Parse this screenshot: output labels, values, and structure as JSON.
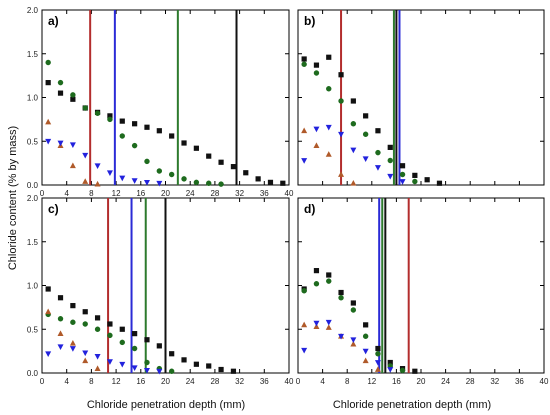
{
  "figure": {
    "ylabel": "Chloride content (% by mass)",
    "xlabel_left": "Chloride penetration depth (mm)",
    "xlabel_right": "Chloride penetration depth (mm)"
  },
  "chart_data": [
    {
      "panel": "a)",
      "type": "scatter",
      "xlim": [
        0,
        40
      ],
      "ylim": [
        0,
        2.0
      ],
      "x_ticks": [
        "0",
        "4",
        "8",
        "12",
        "16",
        "20",
        "24",
        "28",
        "32",
        "36",
        "40"
      ],
      "y_ticks": [
        "0.0",
        "0.5",
        "1.0",
        "1.5",
        "2.0"
      ],
      "series": [
        {
          "marker": "square",
          "color": "#111111",
          "points": [
            [
              1,
              1.17
            ],
            [
              3,
              1.05
            ],
            [
              5,
              0.98
            ],
            [
              7,
              0.88
            ],
            [
              9,
              0.83
            ],
            [
              11,
              0.79
            ],
            [
              13,
              0.73
            ],
            [
              15,
              0.7
            ],
            [
              17,
              0.66
            ],
            [
              19,
              0.62
            ],
            [
              21,
              0.56
            ],
            [
              23,
              0.48
            ],
            [
              25,
              0.42
            ],
            [
              27,
              0.33
            ],
            [
              29,
              0.26
            ],
            [
              31,
              0.21
            ],
            [
              33,
              0.14
            ],
            [
              35,
              0.07
            ],
            [
              37,
              0.03
            ],
            [
              39,
              0.02
            ]
          ]
        },
        {
          "marker": "circle",
          "color": "#1e6b1e",
          "points": [
            [
              1,
              1.4
            ],
            [
              3,
              1.17
            ],
            [
              5,
              1.03
            ],
            [
              7,
              0.88
            ],
            [
              9,
              0.82
            ],
            [
              11,
              0.75
            ],
            [
              13,
              0.56
            ],
            [
              15,
              0.45
            ],
            [
              17,
              0.27
            ],
            [
              19,
              0.16
            ],
            [
              21,
              0.12
            ],
            [
              23,
              0.07
            ],
            [
              25,
              0.03
            ],
            [
              27,
              0.02
            ],
            [
              29,
              0.01
            ]
          ]
        },
        {
          "marker": "triangle-up",
          "color": "#b05a2a",
          "points": [
            [
              1,
              0.72
            ],
            [
              3,
              0.45
            ],
            [
              5,
              0.22
            ],
            [
              7,
              0.04
            ],
            [
              9,
              0.01
            ]
          ]
        },
        {
          "marker": "triangle-down",
          "color": "#2222dd",
          "points": [
            [
              1,
              0.5
            ],
            [
              3,
              0.48
            ],
            [
              5,
              0.46
            ],
            [
              7,
              0.34
            ],
            [
              9,
              0.22
            ],
            [
              11,
              0.14
            ],
            [
              13,
              0.08
            ],
            [
              15,
              0.05
            ],
            [
              17,
              0.03
            ],
            [
              19,
              0.02
            ]
          ]
        }
      ],
      "vlines": [
        {
          "x": 7.8,
          "color": "#b32d2d"
        },
        {
          "x": 11.8,
          "color": "#2b2bd6"
        },
        {
          "x": 22.0,
          "color": "#2d7a2d"
        },
        {
          "x": 31.5,
          "color": "#111111"
        }
      ]
    },
    {
      "panel": "b)",
      "type": "scatter",
      "xlim": [
        0,
        40
      ],
      "ylim": [
        0,
        2.0
      ],
      "x_ticks": [],
      "y_ticks": [],
      "series": [
        {
          "marker": "square",
          "color": "#111111",
          "points": [
            [
              1,
              1.44
            ],
            [
              3,
              1.37
            ],
            [
              5,
              1.46
            ],
            [
              7,
              1.26
            ],
            [
              9,
              0.96
            ],
            [
              11,
              0.79
            ],
            [
              13,
              0.62
            ],
            [
              15,
              0.43
            ],
            [
              17,
              0.22
            ],
            [
              19,
              0.11
            ],
            [
              21,
              0.06
            ],
            [
              23,
              0.02
            ]
          ]
        },
        {
          "marker": "circle",
          "color": "#1e6b1e",
          "points": [
            [
              1,
              1.38
            ],
            [
              3,
              1.28
            ],
            [
              5,
              1.1
            ],
            [
              7,
              0.96
            ],
            [
              9,
              0.7
            ],
            [
              11,
              0.58
            ],
            [
              13,
              0.37
            ],
            [
              15,
              0.28
            ],
            [
              17,
              0.12
            ],
            [
              19,
              0.04
            ]
          ]
        },
        {
          "marker": "triangle-up",
          "color": "#b05a2a",
          "points": [
            [
              1,
              0.62
            ],
            [
              3,
              0.45
            ],
            [
              5,
              0.35
            ],
            [
              7,
              0.12
            ],
            [
              9,
              0.02
            ]
          ]
        },
        {
          "marker": "triangle-down",
          "color": "#2222dd",
          "points": [
            [
              1,
              0.28
            ],
            [
              3,
              0.64
            ],
            [
              5,
              0.66
            ],
            [
              7,
              0.58
            ],
            [
              9,
              0.4
            ],
            [
              11,
              0.3
            ],
            [
              13,
              0.2
            ],
            [
              15,
              0.1
            ],
            [
              17,
              0.04
            ]
          ]
        }
      ],
      "vlines": [
        {
          "x": 7.0,
          "color": "#b32d2d"
        },
        {
          "x": 15.6,
          "color": "#2d7a2d"
        },
        {
          "x": 16.0,
          "color": "#111111"
        },
        {
          "x": 16.5,
          "color": "#2b2bd6"
        }
      ]
    },
    {
      "panel": "c)",
      "type": "scatter",
      "xlim": [
        0,
        40
      ],
      "ylim": [
        0,
        2.0
      ],
      "x_ticks": [
        "0",
        "4",
        "8",
        "12",
        "16",
        "20",
        "24",
        "28",
        "32",
        "36",
        "40"
      ],
      "y_ticks": [
        "0.0",
        "0.5",
        "1.0",
        "1.5",
        "2.0"
      ],
      "series": [
        {
          "marker": "square",
          "color": "#111111",
          "points": [
            [
              1,
              0.96
            ],
            [
              3,
              0.86
            ],
            [
              5,
              0.77
            ],
            [
              7,
              0.7
            ],
            [
              9,
              0.63
            ],
            [
              11,
              0.56
            ],
            [
              13,
              0.5
            ],
            [
              15,
              0.45
            ],
            [
              17,
              0.38
            ],
            [
              19,
              0.31
            ],
            [
              21,
              0.22
            ],
            [
              23,
              0.15
            ],
            [
              25,
              0.1
            ],
            [
              27,
              0.08
            ],
            [
              29,
              0.04
            ],
            [
              31,
              0.02
            ]
          ]
        },
        {
          "marker": "circle",
          "color": "#1e6b1e",
          "points": [
            [
              1,
              0.67
            ],
            [
              3,
              0.62
            ],
            [
              5,
              0.58
            ],
            [
              7,
              0.56
            ],
            [
              9,
              0.5
            ],
            [
              11,
              0.43
            ],
            [
              13,
              0.35
            ],
            [
              15,
              0.28
            ],
            [
              17,
              0.12
            ],
            [
              19,
              0.05
            ],
            [
              21,
              0.02
            ]
          ]
        },
        {
          "marker": "triangle-up",
          "color": "#b05a2a",
          "points": [
            [
              1,
              0.7
            ],
            [
              3,
              0.45
            ],
            [
              5,
              0.34
            ],
            [
              7,
              0.14
            ],
            [
              9,
              0.05
            ]
          ]
        },
        {
          "marker": "triangle-down",
          "color": "#2222dd",
          "points": [
            [
              1,
              0.22
            ],
            [
              3,
              0.3
            ],
            [
              5,
              0.28
            ],
            [
              7,
              0.23
            ],
            [
              9,
              0.19
            ],
            [
              11,
              0.13
            ],
            [
              13,
              0.1
            ],
            [
              15,
              0.06
            ],
            [
              17,
              0.03
            ],
            [
              19,
              0.02
            ]
          ]
        }
      ],
      "vlines": [
        {
          "x": 10.7,
          "color": "#b32d2d"
        },
        {
          "x": 14.5,
          "color": "#2b2bd6"
        },
        {
          "x": 16.8,
          "color": "#2d7a2d"
        },
        {
          "x": 20.0,
          "color": "#111111"
        }
      ]
    },
    {
      "panel": "d)",
      "type": "scatter",
      "xlim": [
        0,
        40
      ],
      "ylim": [
        0,
        2.0
      ],
      "x_ticks": [
        "0",
        "4",
        "8",
        "12",
        "16",
        "20",
        "24",
        "28",
        "32",
        "36",
        "40"
      ],
      "y_ticks": [],
      "series": [
        {
          "marker": "square",
          "color": "#111111",
          "points": [
            [
              1,
              0.96
            ],
            [
              3,
              1.17
            ],
            [
              5,
              1.12
            ],
            [
              7,
              0.92
            ],
            [
              9,
              0.8
            ],
            [
              11,
              0.55
            ],
            [
              13,
              0.28
            ],
            [
              15,
              0.12
            ],
            [
              17,
              0.05
            ],
            [
              19,
              0.02
            ]
          ]
        },
        {
          "marker": "circle",
          "color": "#1e6b1e",
          "points": [
            [
              1,
              0.94
            ],
            [
              3,
              1.02
            ],
            [
              5,
              1.05
            ],
            [
              7,
              0.86
            ],
            [
              9,
              0.72
            ],
            [
              11,
              0.42
            ],
            [
              13,
              0.22
            ],
            [
              15,
              0.08
            ],
            [
              17,
              0.03
            ]
          ]
        },
        {
          "marker": "triangle-up",
          "color": "#b05a2a",
          "points": [
            [
              1,
              0.55
            ],
            [
              3,
              0.53
            ],
            [
              5,
              0.52
            ],
            [
              7,
              0.42
            ],
            [
              9,
              0.33
            ],
            [
              11,
              0.14
            ],
            [
              13,
              0.04
            ]
          ]
        },
        {
          "marker": "triangle-down",
          "color": "#2222dd",
          "points": [
            [
              1,
              0.26
            ],
            [
              3,
              0.57
            ],
            [
              5,
              0.58
            ],
            [
              7,
              0.42
            ],
            [
              9,
              0.38
            ],
            [
              11,
              0.25
            ],
            [
              13,
              0.12
            ],
            [
              15,
              0.04
            ]
          ]
        }
      ],
      "vlines": [
        {
          "x": 13.2,
          "color": "#2b2bd6"
        },
        {
          "x": 13.7,
          "color": "#2d7a2d"
        },
        {
          "x": 14.2,
          "color": "#111111"
        },
        {
          "x": 18.0,
          "color": "#b32d2d"
        }
      ]
    }
  ]
}
